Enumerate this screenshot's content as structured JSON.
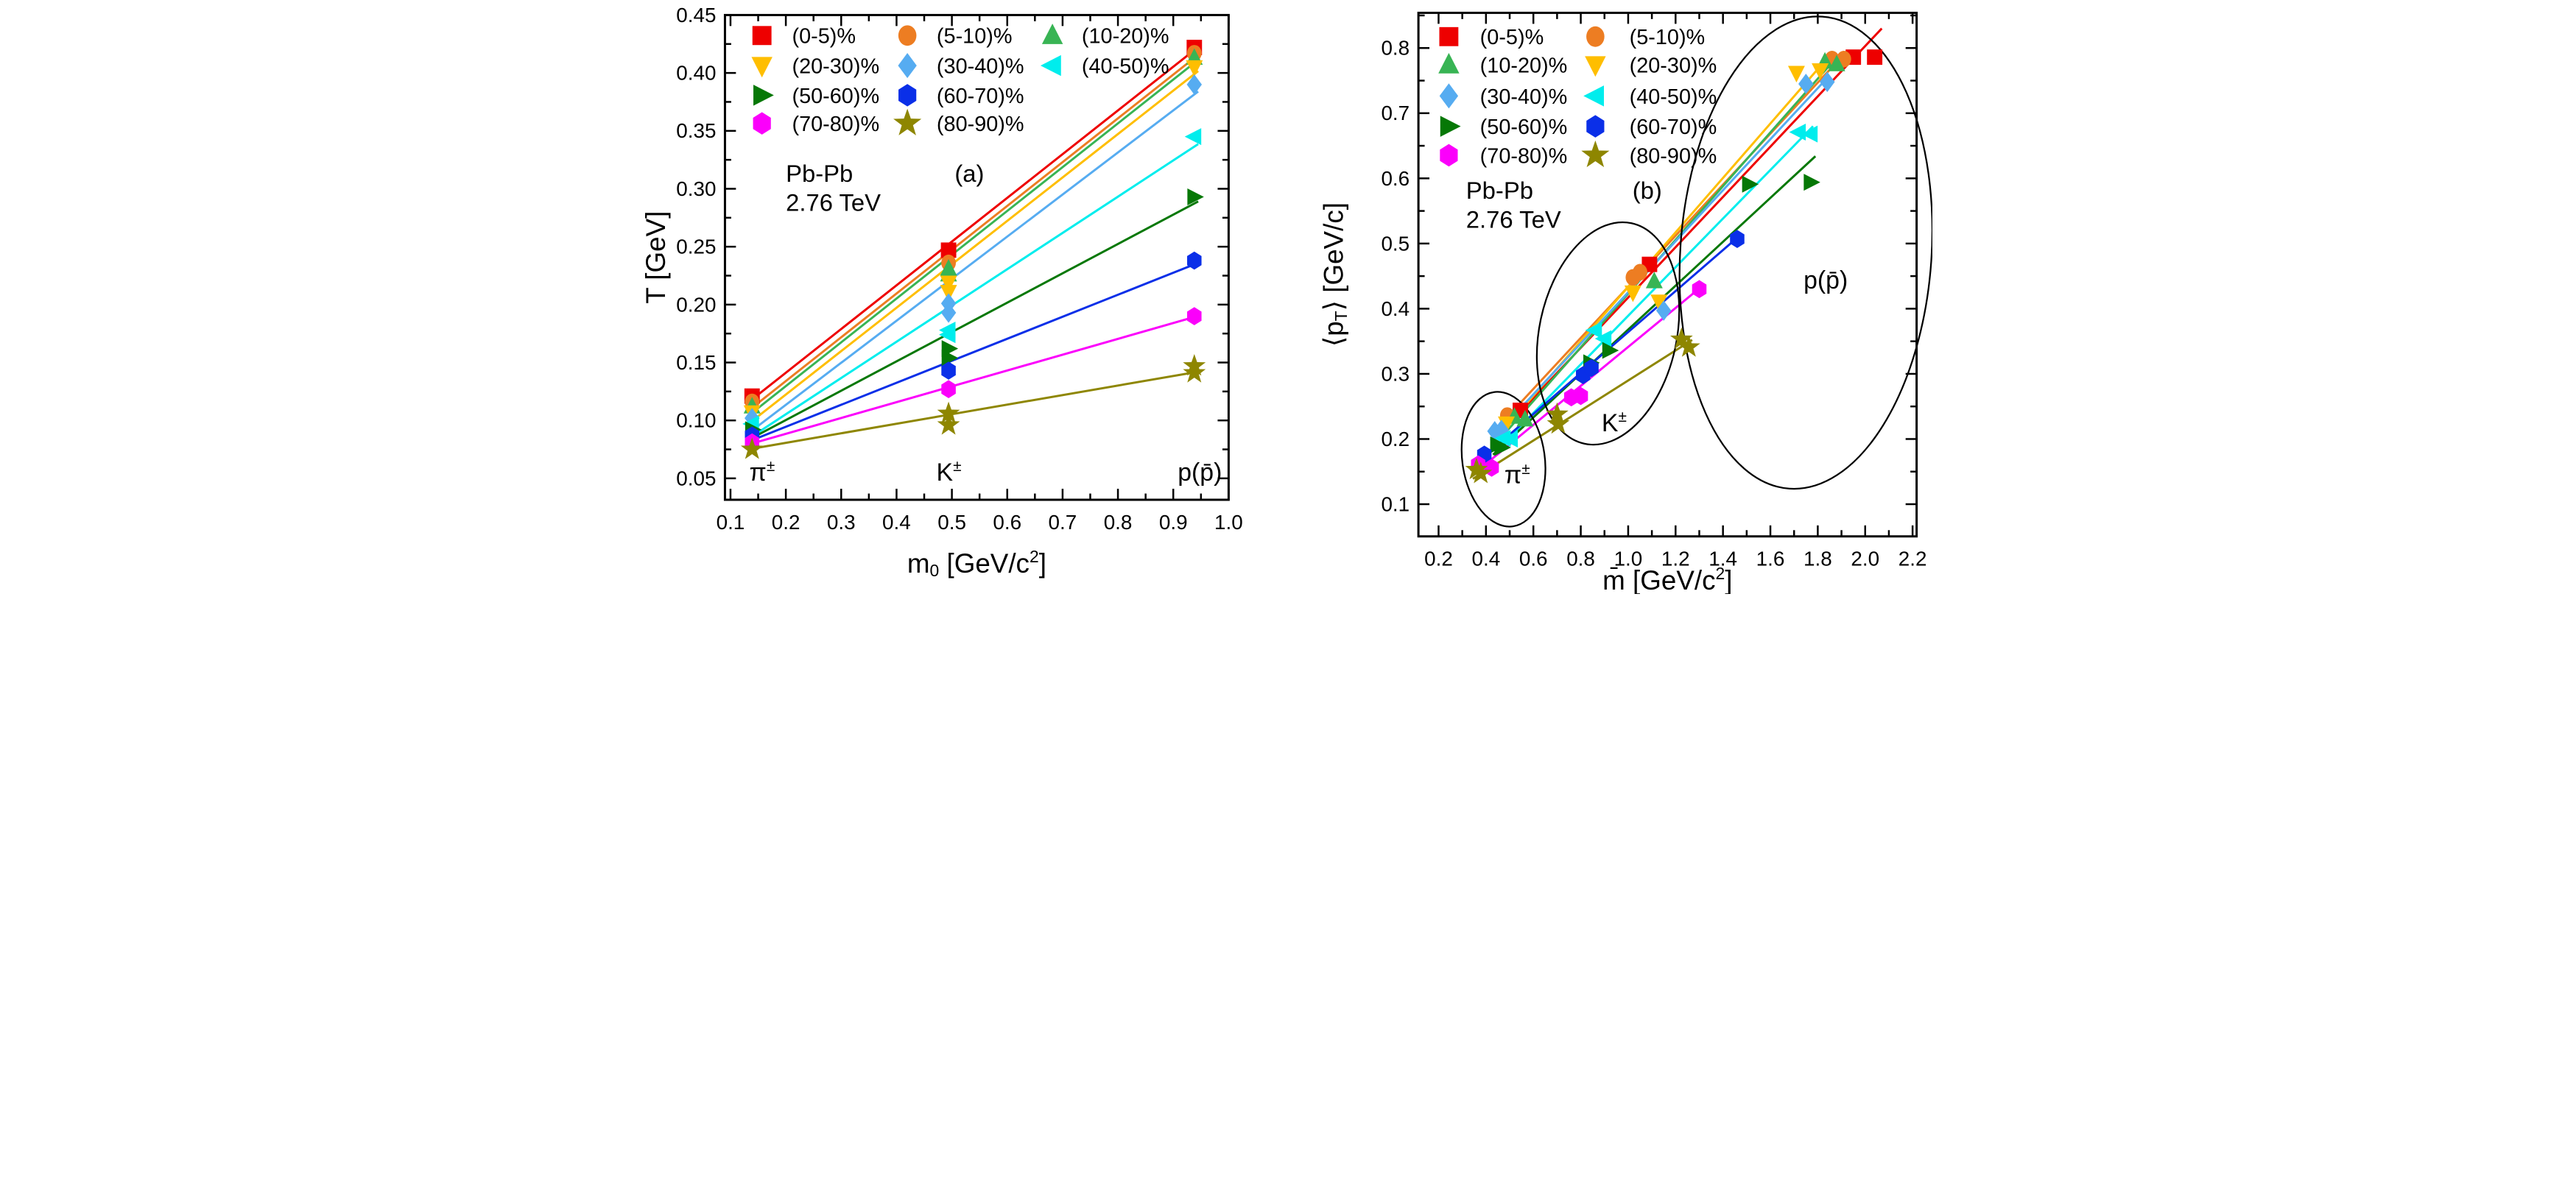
{
  "page": {
    "background": "#ffffff",
    "text_color": "#000000"
  },
  "chart_data": [
    {
      "panel_label": "(a)",
      "type": "scatter",
      "system": "Pb-Pb",
      "energy": "2.76 TeV",
      "xlabel_parts": [
        [
          "m"
        ],
        [
          "0",
          "sub"
        ],
        [
          " [GeV/c"
        ],
        [
          "2",
          "sup"
        ],
        [
          "]"
        ]
      ],
      "ylabel_parts": [
        [
          "T [GeV]"
        ]
      ],
      "xlim": [
        0.09,
        1.0
      ],
      "ylim": [
        0.0315,
        0.45
      ],
      "grid": false,
      "legend_position": "top-left-inside",
      "x_ticks": {
        "values": [
          0.1,
          0.2,
          0.3,
          0.4,
          0.5,
          0.6,
          0.7,
          0.8,
          0.9,
          1.0
        ],
        "labels": [
          "0.1",
          "0.2",
          "0.3",
          "0.4",
          "0.5",
          "0.6",
          "0.7",
          "0.8",
          "0.9",
          "1.0"
        ]
      },
      "x_minor": [
        0.15,
        0.25,
        0.35,
        0.45,
        0.55,
        0.65,
        0.75,
        0.85,
        0.95
      ],
      "y_ticks": {
        "values": [
          0.05,
          0.1,
          0.15,
          0.2,
          0.25,
          0.3,
          0.35,
          0.4,
          0.45
        ],
        "labels": [
          "0.05",
          "0.10",
          "0.15",
          "0.20",
          "0.25",
          "0.30",
          "0.35",
          "0.40",
          "0.45"
        ]
      },
      "y_minor": [
        0.075,
        0.125,
        0.175,
        0.225,
        0.275,
        0.325,
        0.375,
        0.425
      ],
      "species": [
        "pi+-",
        "K+-",
        "p(pbar)"
      ],
      "species_mass": [
        0.139,
        0.494,
        0.938
      ],
      "series": [
        {
          "name": "(0-5)%",
          "marker": "square",
          "color": "#ee0000",
          "T": [
            0.121,
            0.247,
            0.422
          ]
        },
        {
          "name": "(5-10)%",
          "marker": "circle",
          "color": "#ed7d22",
          "T": [
            0.116,
            0.236,
            0.417
          ]
        },
        {
          "name": "(10-20)%",
          "marker": "triangle-up",
          "color": "#38b454",
          "T": [
            0.112,
            0.231,
            0.413
          ],
          "extra_points": [
            [
              0.494,
              0.226
            ]
          ]
        },
        {
          "name": "(20-30)%",
          "marker": "triangle-down",
          "color": "#ffbe00",
          "T": [
            0.107,
            0.219,
            0.405
          ],
          "extra_points": [
            [
              0.494,
              0.211
            ]
          ]
        },
        {
          "name": "(30-40)%",
          "marker": "diamond",
          "color": "#56acf1",
          "T": [
            0.102,
            0.201,
            0.39
          ],
          "extra_points": [
            [
              0.494,
              0.193
            ]
          ]
        },
        {
          "name": "(40-50)%",
          "marker": "triangle-left",
          "color": "#00eded",
          "T": [
            0.097,
            0.178,
            0.345
          ],
          "extra_points": [
            [
              0.494,
              0.174
            ]
          ]
        },
        {
          "name": "(50-60)%",
          "marker": "triangle-right",
          "color": "#067806",
          "T": [
            0.092,
            0.162,
            0.293
          ],
          "extra_points": [
            [
              0.494,
              0.154
            ]
          ]
        },
        {
          "name": "(60-70)%",
          "marker": "hexagon",
          "color": "#0a2fe8",
          "T": [
            0.087,
            0.143,
            0.238
          ]
        },
        {
          "name": "(70-80)%",
          "marker": "hexagon",
          "color": "#fb00fb",
          "T": [
            0.081,
            0.127,
            0.19
          ]
        },
        {
          "name": "(80-90)%",
          "marker": "star",
          "color": "#8e8600",
          "T": [
            0.075,
            0.106,
            0.141
          ],
          "extra_points": [
            [
              0.494,
              0.096
            ],
            [
              0.938,
              0.147
            ]
          ]
        }
      ],
      "annotations": [
        {
          "name": "system-label",
          "parts": [
            [
              "Pb-Pb"
            ]
          ],
          "x": 0.2,
          "y": 0.306,
          "size": 66
        },
        {
          "name": "energy-label",
          "parts": [
            [
              "2.76 TeV"
            ]
          ],
          "x": 0.2,
          "y": 0.281,
          "size": 66
        },
        {
          "name": "panel-label",
          "parts": [
            [
              "(a)"
            ]
          ],
          "x": 0.505,
          "y": 0.306,
          "size": 66
        },
        {
          "name": "pion-label",
          "parts": [
            [
              "π"
            ],
            [
              "±",
              "sup"
            ]
          ],
          "x": 0.134,
          "y": 0.048,
          "size": 68
        },
        {
          "name": "kaon-label",
          "parts": [
            [
              "K"
            ],
            [
              "±",
              "sup"
            ]
          ],
          "x": 0.472,
          "y": 0.048,
          "size": 68
        },
        {
          "name": "proton-label",
          "parts": [
            [
              "p(p̄)"
            ]
          ],
          "x": 0.908,
          "y": 0.048,
          "size": 68
        }
      ]
    },
    {
      "panel_label": "(b)",
      "type": "scatter",
      "system": "Pb-Pb",
      "energy": "2.76 TeV",
      "xlabel_parts": [
        [
          "m̄ [GeV/c"
        ],
        [
          "2",
          "sup"
        ],
        [
          "]"
        ]
      ],
      "ylabel_parts": [
        [
          "⟨p"
        ],
        [
          "T",
          "sub"
        ],
        [
          "⟩ [GeV/c]"
        ]
      ],
      "xlim": [
        0.115,
        2.217
      ],
      "ylim": [
        0.0506,
        0.854
      ],
      "grid": false,
      "legend_position": "top-left-inside",
      "x_ticks": {
        "values": [
          0.2,
          0.4,
          0.6,
          0.8,
          1.0,
          1.2,
          1.4,
          1.6,
          1.8,
          2.0,
          2.2
        ],
        "labels": [
          "0.2",
          "0.4",
          "0.6",
          "0.8",
          "1.0",
          "1.2",
          "1.4",
          "1.6",
          "1.8",
          "2.0",
          "2.2"
        ]
      },
      "x_minor": [
        0.3,
        0.5,
        0.7,
        0.9,
        1.1,
        1.3,
        1.5,
        1.7,
        1.9,
        2.1
      ],
      "y_ticks": {
        "values": [
          0.1,
          0.2,
          0.3,
          0.4,
          0.5,
          0.6,
          0.7,
          0.8
        ],
        "labels": [
          "0.1",
          "0.2",
          "0.3",
          "0.4",
          "0.5",
          "0.6",
          "0.7",
          "0.8"
        ]
      },
      "y_minor": [
        0.15,
        0.25,
        0.35,
        0.45,
        0.55,
        0.65,
        0.75,
        0.85
      ],
      "series": [
        {
          "name": "(0-5)%",
          "marker": "square",
          "color": "#ee0000",
          "points": [
            [
              0.545,
              0.244
            ],
            [
              1.09,
              0.468
            ],
            [
              1.95,
              0.786
            ],
            [
              2.04,
              0.786
            ]
          ],
          "line": [
            [
              0.52,
              0.232
            ],
            [
              2.07,
              0.83
            ]
          ]
        },
        {
          "name": "(5-10)%",
          "marker": "circle",
          "color": "#ed7d22",
          "points": [
            [
              0.49,
              0.236
            ],
            [
              1.02,
              0.448
            ],
            [
              1.05,
              0.456
            ],
            [
              1.86,
              0.783
            ],
            [
              1.91,
              0.783
            ]
          ],
          "line": [
            [
              0.47,
              0.226
            ],
            [
              1.92,
              0.794
            ]
          ]
        },
        {
          "name": "(10-20)%",
          "marker": "triangle-up",
          "color": "#38b454",
          "points": [
            [
              0.52,
              0.234
            ],
            [
              0.565,
              0.23
            ],
            [
              1.11,
              0.442
            ],
            [
              1.83,
              0.779
            ],
            [
              1.88,
              0.775
            ]
          ],
          "line": [
            [
              0.49,
              0.213
            ],
            [
              1.89,
              0.79
            ]
          ]
        },
        {
          "name": "(20-30)%",
          "marker": "triangle-down",
          "color": "#ffbe00",
          "points": [
            [
              0.486,
              0.224
            ],
            [
              1.02,
              0.425
            ],
            [
              1.13,
              0.411
            ],
            [
              1.71,
              0.762
            ],
            [
              1.81,
              0.766
            ]
          ],
          "line": [
            [
              0.46,
              0.208
            ],
            [
              1.82,
              0.776
            ]
          ]
        },
        {
          "name": "(30-40)%",
          "marker": "diamond",
          "color": "#56acf1",
          "points": [
            [
              0.437,
              0.212
            ],
            [
              0.465,
              0.214
            ],
            [
              1.15,
              0.397
            ],
            [
              1.75,
              0.745
            ],
            [
              1.84,
              0.748
            ]
          ],
          "line": [
            [
              0.42,
              0.198
            ],
            [
              1.85,
              0.758
            ]
          ]
        },
        {
          "name": "(40-50)%",
          "marker": "triangle-left",
          "color": "#00eded",
          "points": [
            [
              0.475,
              0.201
            ],
            [
              0.505,
              0.2
            ],
            [
              0.86,
              0.367
            ],
            [
              0.9,
              0.354
            ],
            [
              1.72,
              0.671
            ],
            [
              1.77,
              0.668
            ]
          ],
          "line": [
            [
              0.45,
              0.184
            ],
            [
              1.78,
              0.68
            ]
          ]
        },
        {
          "name": "(50-60)%",
          "marker": "triangle-right",
          "color": "#067806",
          "points": [
            [
              0.447,
              0.191
            ],
            [
              0.465,
              0.187
            ],
            [
              0.84,
              0.317
            ],
            [
              0.92,
              0.336
            ],
            [
              1.51,
              0.591
            ],
            [
              1.77,
              0.594
            ]
          ],
          "line": [
            [
              0.43,
              0.176
            ],
            [
              1.79,
              0.634
            ]
          ]
        },
        {
          "name": "(60-70)%",
          "marker": "hexagon",
          "color": "#0a2fe8",
          "points": [
            [
              0.393,
              0.176
            ],
            [
              0.81,
              0.298
            ],
            [
              0.845,
              0.309
            ],
            [
              1.46,
              0.507
            ]
          ],
          "line": [
            [
              0.37,
              0.166
            ],
            [
              1.47,
              0.512
            ]
          ]
        },
        {
          "name": "(70-80)%",
          "marker": "hexagon",
          "color": "#fb00fb",
          "points": [
            [
              0.367,
              0.161
            ],
            [
              0.424,
              0.156
            ],
            [
              0.76,
              0.264
            ],
            [
              0.8,
              0.266
            ],
            [
              1.3,
              0.43
            ]
          ],
          "line": [
            [
              0.35,
              0.147
            ],
            [
              1.31,
              0.434
            ]
          ]
        },
        {
          "name": "(80-90)%",
          "marker": "star",
          "color": "#8e8600",
          "points": [
            [
              0.36,
              0.153
            ],
            [
              0.378,
              0.147
            ],
            [
              0.7,
              0.238
            ],
            [
              0.705,
              0.223
            ],
            [
              1.225,
              0.353
            ],
            [
              1.256,
              0.341
            ]
          ],
          "line": [
            [
              0.345,
              0.139
            ],
            [
              1.27,
              0.352
            ]
          ]
        }
      ],
      "ellipses": [
        {
          "name": "pion-cluster",
          "cx": 0.474,
          "cy": 0.169,
          "rx": 0.174,
          "ry": 0.104,
          "rotate": -8
        },
        {
          "name": "kaon-cluster",
          "cx": 0.915,
          "cy": 0.362,
          "rx": 0.29,
          "ry": 0.173,
          "rotate": 12
        },
        {
          "name": "proton-cluster",
          "cx": 1.75,
          "cy": 0.486,
          "rx": 0.53,
          "ry": 0.363,
          "rotate": 4
        }
      ],
      "annotations": [
        {
          "name": "system-label",
          "parts": [
            [
              "Pb-Pb"
            ]
          ],
          "x": 0.316,
          "y": 0.569,
          "size": 66
        },
        {
          "name": "energy-label",
          "parts": [
            [
              "2.76 TeV"
            ]
          ],
          "x": 0.316,
          "y": 0.524,
          "size": 66
        },
        {
          "name": "panel-label",
          "parts": [
            [
              "(b)"
            ]
          ],
          "x": 1.018,
          "y": 0.569,
          "size": 66
        },
        {
          "name": "pion-label",
          "parts": [
            [
              "π"
            ],
            [
              "±",
              "sup"
            ]
          ],
          "x": 0.478,
          "y": 0.132,
          "size": 68
        },
        {
          "name": "kaon-label",
          "parts": [
            [
              "K"
            ],
            [
              "±",
              "sup"
            ]
          ],
          "x": 0.888,
          "y": 0.212,
          "size": 68
        },
        {
          "name": "proton-label",
          "parts": [
            [
              "p(p̄)"
            ]
          ],
          "x": 1.74,
          "y": 0.431,
          "size": 68
        }
      ]
    }
  ]
}
